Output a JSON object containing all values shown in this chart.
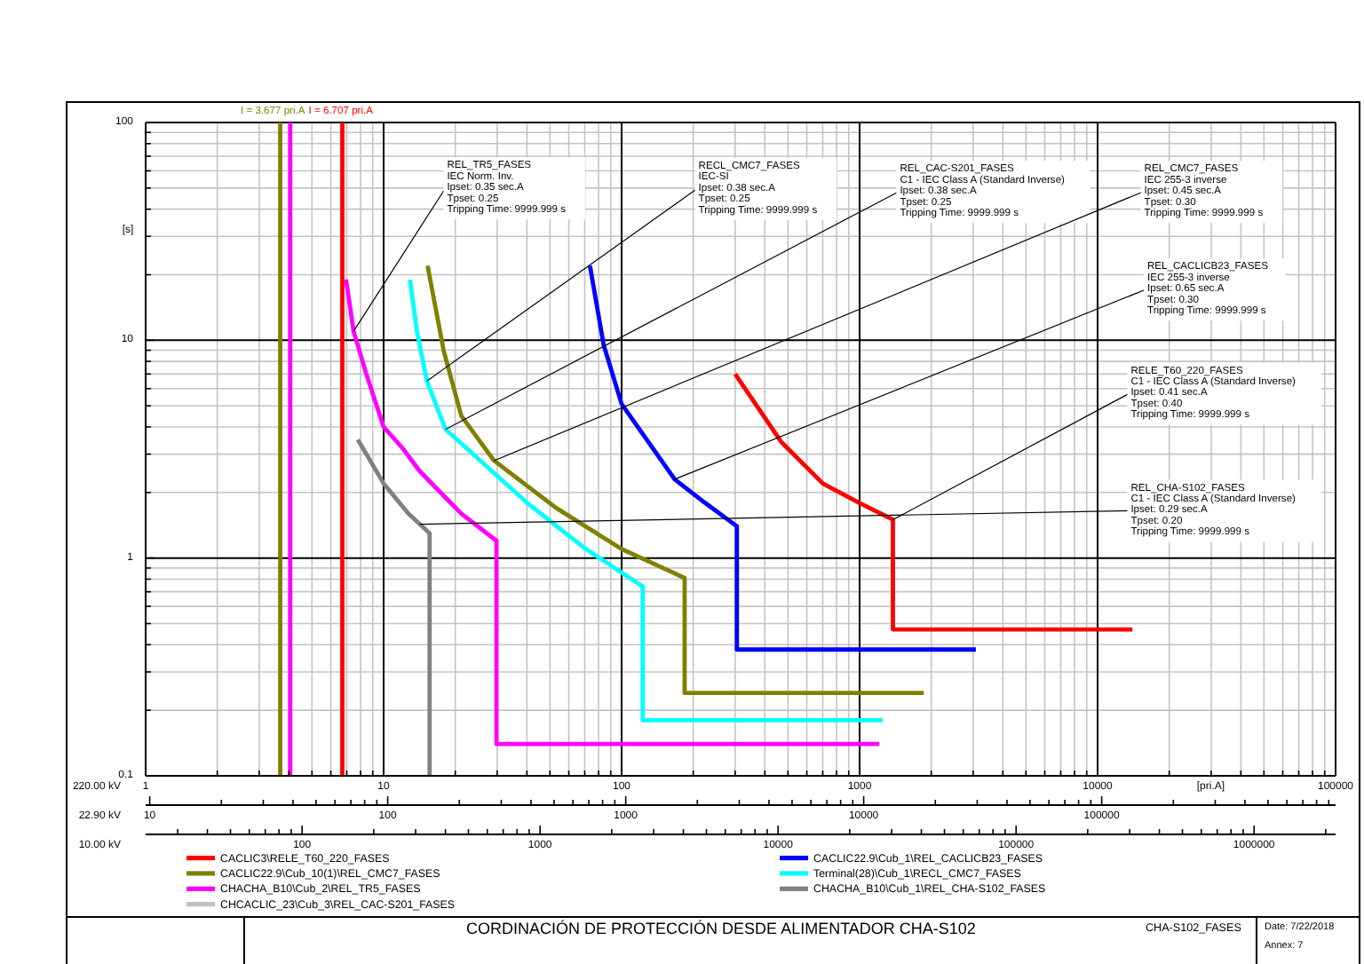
{
  "chart_data": {
    "type": "line",
    "title": "CORDINACIÓN DE PROTECCIÓN DESDE ALIMENTADOR CHA-S102",
    "xlabel": "220.00 kV",
    "ylabel": "[s]",
    "log": "xy",
    "grid": true,
    "legend": "bottom",
    "xlim": [
      1,
      100000
    ],
    "xticks": [
      1,
      {
        "value": 2,
        "label": null
      },
      {
        "value": 3,
        "label": null
      },
      {
        "value": 4,
        "label": null
      },
      {
        "value": 5,
        "label": null
      },
      {
        "value": 6,
        "label": null
      },
      {
        "value": 7,
        "label": null
      },
      {
        "value": 8,
        "label": null
      },
      {
        "value": 9,
        "label": null
      },
      10,
      {
        "value": 20,
        "label": null
      },
      {
        "value": 30,
        "label": null
      },
      {
        "value": 40,
        "label": null
      },
      {
        "value": 50,
        "label": null
      },
      {
        "value": 60,
        "label": null
      },
      {
        "value": 70,
        "label": null
      },
      {
        "value": 80,
        "label": null
      },
      {
        "value": 90,
        "label": null
      },
      100,
      {
        "value": 200,
        "label": null
      },
      {
        "value": 300,
        "label": null
      },
      {
        "value": 400,
        "label": null
      },
      {
        "value": 500,
        "label": null
      },
      {
        "value": 600,
        "label": null
      },
      {
        "value": 700,
        "label": null
      },
      {
        "value": 800,
        "label": null
      },
      {
        "value": 900,
        "label": null
      },
      1000,
      {
        "value": 2000,
        "label": null
      },
      {
        "value": 3000,
        "label": null
      },
      {
        "value": 4000,
        "label": null
      },
      {
        "value": 5000,
        "label": null
      },
      {
        "value": 6000,
        "label": null
      },
      {
        "value": 7000,
        "label": null
      },
      {
        "value": 8000,
        "label": null
      },
      {
        "value": 9000,
        "label": null
      },
      10000,
      {
        "value": 20000,
        "label": null
      },
      {
        "value": 30000,
        "label": null
      },
      {
        "value": 40000,
        "label": null
      },
      {
        "value": 50000,
        "label": null
      },
      {
        "value": 60000,
        "label": null
      },
      {
        "value": 70000,
        "label": null
      },
      {
        "value": 80000,
        "label": null
      },
      {
        "value": 90000,
        "label": null
      },
      100000
    ],
    "ylim": [
      0.1,
      100
    ],
    "yticks": [
      0.1,
      {
        "value": 0.2,
        "label": null
      },
      {
        "value": 0.3,
        "label": null
      },
      {
        "value": 0.4,
        "label": null
      },
      {
        "value": 0.5,
        "label": null
      },
      {
        "value": 0.6,
        "label": null
      },
      {
        "value": 0.7,
        "label": null
      },
      {
        "value": 0.8,
        "label": null
      },
      {
        "value": 0.9,
        "label": null
      },
      1,
      {
        "value": 2,
        "label": null
      },
      {
        "value": 3,
        "label": null
      },
      {
        "value": 4,
        "label": null
      },
      {
        "value": 5,
        "label": null
      },
      {
        "value": 6,
        "label": null
      },
      {
        "value": 7,
        "label": null
      },
      {
        "value": 8,
        "label": null
      },
      {
        "value": 9,
        "label": null
      },
      10,
      {
        "value": 20,
        "label": null
      },
      {
        "value": 30,
        "label": null
      },
      {
        "value": 40,
        "label": null
      },
      {
        "value": 50,
        "label": null
      },
      {
        "value": 60,
        "label": null
      },
      {
        "value": 70,
        "label": null
      },
      {
        "value": 80,
        "label": null
      },
      {
        "value": 90,
        "label": null
      },
      100
    ],
    "series": [
      {
        "name": "CACLIC3\\RELE_T60_220_FASES",
        "color": "#ff0000",
        "x": [
          300,
          470,
          700,
          990,
          1380,
          1380,
          14000
        ],
        "values": [
          7.0,
          3.4,
          2.2,
          1.8,
          1.5,
          0.47,
          0.47
        ]
      },
      {
        "name": "CACLIC22.9\\Cub_10(1)\\REL_CMC7_FASES",
        "color": "#808000",
        "x": [
          15.3,
          17.9,
          21.2,
          29.1,
          53,
          100,
          184,
          184,
          1860
        ],
        "values": [
          22,
          8.9,
          4.5,
          2.8,
          1.7,
          1.1,
          0.81,
          0.24,
          0.24
        ]
      },
      {
        "name": "CHACHA_B10\\Cub_2\\REL_TR5_FASES",
        "color": "#ff00ff",
        "x": [
          6.95,
          7.48,
          8.49,
          10,
          12,
          14.2,
          21.2,
          29.8,
          29.8,
          1210
        ],
        "values": [
          19,
          11,
          6.9,
          4.0,
          3.2,
          2.5,
          1.6,
          1.2,
          0.14,
          0.14
        ]
      },
      {
        "name": "CHCACLIC_23\\Cub_3\\REL_CAC-S201_FASES",
        "color": "#c0c0c0"
      },
      {
        "name": "CACLIC22.9\\Cub_1\\REL_CACLICB23_FASES",
        "color": "#0000ff",
        "x": [
          73.6,
          84.1,
          100,
          167,
          223,
          305,
          305,
          3080
        ],
        "values": [
          22,
          9.5,
          5.1,
          2.3,
          1.8,
          1.4,
          0.38,
          0.38
        ]
      },
      {
        "name": "Terminal(28)\\Cub_1\\RECL_CMC7_FASES",
        "color": "#00ffff",
        "x": [
          12.9,
          13.8,
          15.2,
          18.2,
          39.9,
          70.8,
          122.7,
          122.7,
          1250
        ],
        "values": [
          19,
          11,
          6.5,
          3.9,
          1.8,
          1.1,
          0.74,
          0.18,
          0.18
        ]
      },
      {
        "name": "CHACHA_B10\\Cub_1\\REL_CHA-S102_FASES",
        "color": "#808080",
        "x": [
          7.79,
          10,
          12.7,
          15.6,
          15.6
        ],
        "values": [
          3.5,
          2.2,
          1.6,
          1.3,
          0.1
        ]
      }
    ],
    "ref_lines": [
      {
        "axis": "x",
        "value": 3.677,
        "label": "I = 3.677 pri.A",
        "color": "#808000"
      },
      {
        "axis": "x",
        "value": 4.05,
        "color": "#ff00ff"
      },
      {
        "axis": "x",
        "value": 6.707,
        "label": "I = 6.707 pri.A",
        "color": "#ff0000"
      }
    ],
    "annotations": [
      {
        "text": "REL_TR5_FASES\nIEC Norm. Inv.\nIpset: 0.35 sec.A\nTpset: 0.25\nTripping Time: 9999.999 s",
        "x": 7.48,
        "y": 11
      },
      {
        "text": "RECL_CMC7_FASES\nIEC-SI\nIpset: 0.38 sec.A\nTpset: 0.25\nTripping Time: 9999.999 s",
        "x": 15.2,
        "y": 6.5
      },
      {
        "text": "REL_CAC-S201_FASES\nC1 - IEC Class A (Standard Inverse)\nIpset: 0.38 sec.A\nTpset: 0.25\nTripping Time: 9999.999 s",
        "x": 18.2,
        "y": 3.9
      },
      {
        "text": "REL_CMC7_FASES\nIEC 255-3 inverse\nIpset: 0.45 sec.A\nTpset: 0.30\nTripping Time: 9999.999 s",
        "x": 29.1,
        "y": 2.8
      },
      {
        "text": "REL_CACLICB23_FASES\nIEC 255-3 inverse\nIpset: 0.65 sec.A\nTpset: 0.30\nTripping Time: 9999.999 s",
        "x": 167,
        "y": 2.3
      },
      {
        "text": "RELE_T60_220_FASES\nC1 - IEC Class A (Standard Inverse)\nIpset: 0.41 sec.A\nTpset: 0.40\nTripping Time: 9999.999 s",
        "x": 1380,
        "y": 1.5
      },
      {
        "text": "REL_CHA-S102_FASES\nC1 - IEC Class A (Standard Inverse)\nIpset: 0.29 sec.A\nTpset: 0.20\nTripping Time: 9999.999 s",
        "x": 14.2,
        "y": 1.43
      },
      "[pri.A]",
      "CHA-S102_FASES",
      "Date: 7/22/2018",
      "Annex: 7",
      "22.90 kV",
      "10",
      "100",
      "1000",
      "10000",
      "100000",
      "10.00 kV",
      "100",
      "1000",
      "10000",
      "100000",
      "1000000"
    ]
  }
}
